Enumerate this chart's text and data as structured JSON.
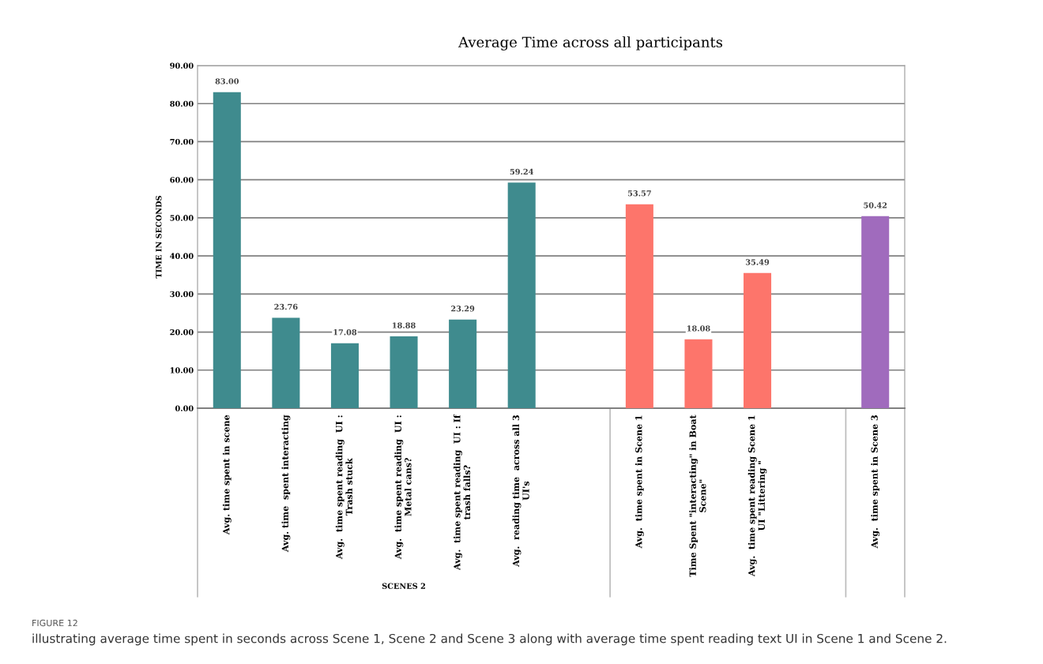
{
  "chart_data": {
    "type": "bar",
    "title": "Average Time across all participants",
    "ylabel": "TIME IN SECONDS",
    "xlabel": "SCENES 2",
    "categories": [
      "Avg. time spent in scene",
      "Avg. time  spent interacting",
      "Avg.  time spent reading  UI :\nTrash stuck",
      "Avg.  time spent reading  UI :\nMetal cans?",
      "Avg.  time spent reading  UI : If\ntrash falls?",
      "Avg.  reading time  across all 3\nUI's",
      null,
      "Avg.  time spent in Scene 1",
      "Time Spent \"interacting\" in Boat\nScene\"",
      "Avg.  time spent reading Scene 1\nUI \"Littering \"",
      null,
      "Avg.  time spent in Scene 3"
    ],
    "values": [
      83.0,
      23.76,
      17.08,
      18.88,
      23.29,
      59.24,
      null,
      53.57,
      18.08,
      35.49,
      null,
      50.42
    ],
    "value_labels": [
      "83.00",
      "23.76",
      "17.08",
      "18.88",
      "23.29",
      "59.24",
      null,
      "53.57",
      "18.08",
      "35.49",
      null,
      "50.42"
    ],
    "colors": [
      "#3f8b8e",
      "#3f8b8e",
      "#3f8b8e",
      "#3f8b8e",
      "#3f8b8e",
      "#3f8b8e",
      "#3f8b8e",
      "#fd756b",
      "#fd756b",
      "#fd756b",
      "#fd756b",
      "#a06bbd"
    ],
    "ylim": [
      0,
      90
    ],
    "yticks": [
      {
        "value": 0,
        "label": "0.00"
      },
      {
        "value": 10,
        "label": "10.00"
      },
      {
        "value": 20,
        "label": "20.00"
      },
      {
        "value": 30,
        "label": "30.00"
      },
      {
        "value": 40,
        "label": "40.00"
      },
      {
        "value": 50,
        "label": "50.00"
      },
      {
        "value": 60,
        "label": "60.00"
      },
      {
        "value": 70,
        "label": "70.00"
      },
      {
        "value": 80,
        "label": "80.00"
      },
      {
        "value": 90,
        "label": "90.00"
      }
    ],
    "grid": "y",
    "annotations": [
      "FIGURE 12",
      "illustrating average time spent in seconds across Scene 1, Scene 2 and Scene 3 along with average time spent reading text UI in Scene 1 and Scene 2."
    ]
  }
}
